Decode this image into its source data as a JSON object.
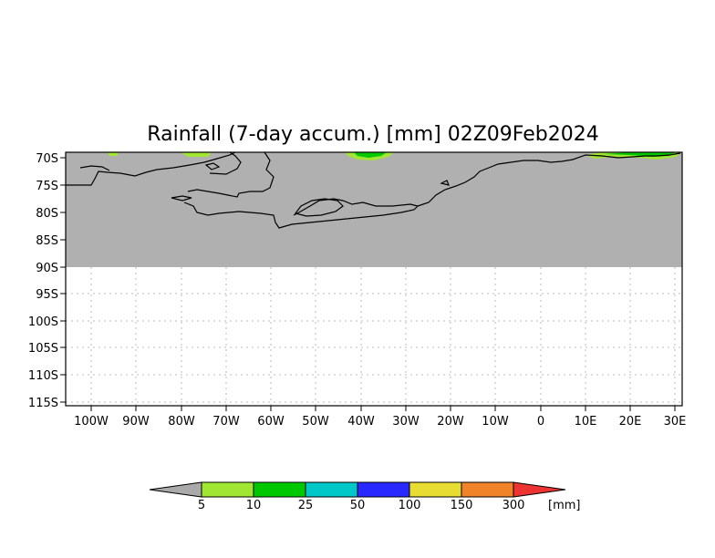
{
  "title": "Rainfall (7-day accum.) [mm] 02Z09Feb2024",
  "colors": {
    "land": "#b0b0b0",
    "ocean": "#ffffff",
    "coast": "#000000",
    "grid": "#bbbbbb"
  },
  "axes": {
    "lat_labels": [
      "70S",
      "75S",
      "80S",
      "85S",
      "90S",
      "95S",
      "100S",
      "105S",
      "110S",
      "115S"
    ],
    "lon_labels": [
      "100W",
      "90W",
      "80W",
      "70W",
      "60W",
      "50W",
      "40W",
      "30W",
      "20W",
      "10W",
      "0",
      "10E",
      "20E",
      "30E"
    ]
  },
  "colorbar": {
    "units": "[mm]",
    "under_color": "#aaaaaa",
    "over_color": "#ee3333",
    "levels": [
      "5",
      "10",
      "25",
      "50",
      "100",
      "150",
      "300"
    ],
    "colors": [
      "#a0e632",
      "#00c800",
      "#00c8c8",
      "#2828ff",
      "#e6dc32",
      "#f08228"
    ]
  }
}
